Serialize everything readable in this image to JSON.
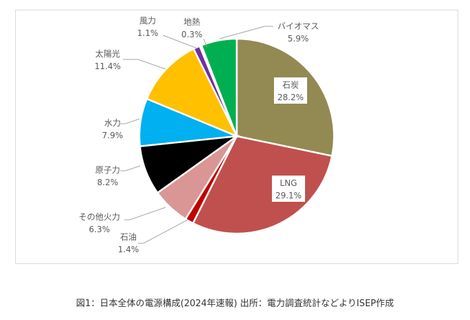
{
  "chart_data": {
    "type": "pie",
    "title": "",
    "start": "top",
    "direction": "clockwise",
    "slices": [
      {
        "label": "石炭",
        "value": 28.2,
        "display": "28.2%",
        "color": "#938953"
      },
      {
        "label": "LNG",
        "value": 29.1,
        "display": "29.1%",
        "color": "#C0504D"
      },
      {
        "label": "石油",
        "value": 1.4,
        "display": "1.4%",
        "color": "#C00000"
      },
      {
        "label": "その他火力",
        "value": 6.3,
        "display": "6.3%",
        "color": "#D99694"
      },
      {
        "label": "原子力",
        "value": 8.2,
        "display": "8.2%",
        "color": "#000000"
      },
      {
        "label": "水力",
        "value": 7.9,
        "display": "7.9%",
        "color": "#00B0F0"
      },
      {
        "label": "太陽光",
        "value": 11.4,
        "display": "11.4%",
        "color": "#FFC000"
      },
      {
        "label": "風力",
        "value": 1.1,
        "display": "1.1%",
        "color": "#7030A0"
      },
      {
        "label": "地熱",
        "value": 0.3,
        "display": "0.3%",
        "color": "#D9D9D9"
      },
      {
        "label": "バイオマス",
        "value": 5.9,
        "display": "5.9%",
        "color": "#00B050"
      }
    ]
  },
  "caption": "図1：日本全体の電源構成(2024年速報) 出所：電力調査統計などよりISEP作成"
}
